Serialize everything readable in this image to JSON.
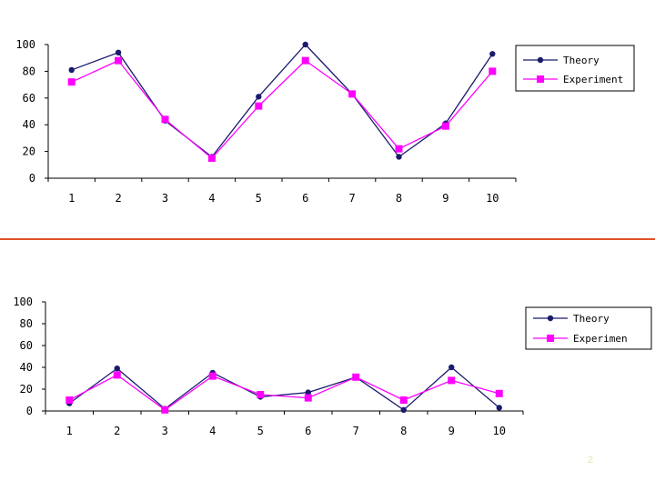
{
  "colors": {
    "theory": "#1a1a6e",
    "experiment": "#ff00ff",
    "divider": "#e0522a",
    "axis": "#000000"
  },
  "chart_data": [
    {
      "type": "line",
      "categories": [
        "1",
        "2",
        "3",
        "4",
        "5",
        "6",
        "7",
        "8",
        "9",
        "10"
      ],
      "ylim": [
        0,
        100
      ],
      "yticks": [
        "100",
        "80",
        "60",
        "40",
        "20",
        "0"
      ],
      "grid": false,
      "legend_position": "right",
      "series": [
        {
          "name": "Theory",
          "marker": "circle",
          "values": [
            81,
            94,
            43,
            16,
            61,
            100,
            63,
            16,
            41,
            93
          ]
        },
        {
          "name": "Experiment",
          "marker": "square",
          "values": [
            72,
            88,
            44,
            15,
            54,
            88,
            63,
            22,
            39,
            80
          ]
        }
      ]
    },
    {
      "type": "line",
      "categories": [
        "1",
        "2",
        "3",
        "4",
        "5",
        "6",
        "7",
        "8",
        "9",
        "10"
      ],
      "ylim": [
        0,
        100
      ],
      "yticks": [
        "100",
        "80",
        "60",
        "40",
        "20",
        "0"
      ],
      "grid": false,
      "legend_position": "right",
      "series": [
        {
          "name": "Theory",
          "marker": "circle",
          "values": [
            7,
            39,
            2,
            35,
            13,
            17,
            31,
            1,
            40,
            3
          ]
        },
        {
          "name": "Experimen",
          "marker": "square",
          "values": [
            10,
            33,
            1,
            32,
            15,
            12,
            31,
            10,
            28,
            16
          ]
        }
      ]
    }
  ],
  "page_number": "2"
}
